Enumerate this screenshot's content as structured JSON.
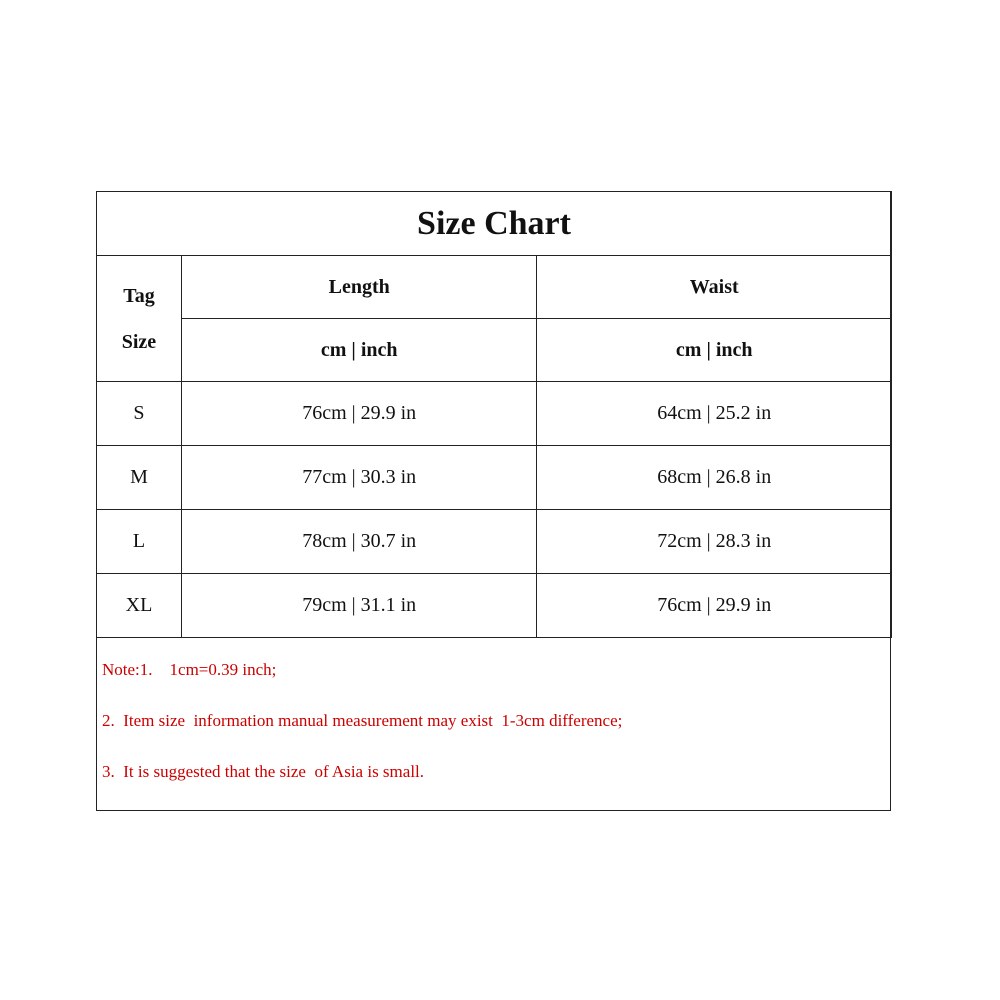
{
  "title": "Size Chart",
  "header": {
    "tag_size": [
      "Tag",
      "Size"
    ],
    "columns": [
      "Length",
      "Waist"
    ],
    "units": [
      "cm | inch",
      "cm | inch"
    ]
  },
  "rows": [
    {
      "size": "S",
      "length": "76cm | 29.9 in",
      "waist": "64cm | 25.2 in"
    },
    {
      "size": "M",
      "length": "77cm | 30.3 in",
      "waist": "68cm | 26.8 in"
    },
    {
      "size": "L",
      "length": "78cm | 30.7 in",
      "waist": "72cm | 28.3 in"
    },
    {
      "size": "XL",
      "length": "79cm | 31.1 in",
      "waist": "76cm | 29.9 in"
    }
  ],
  "notes": [
    "Note:1.    1cm=0.39 inch;",
    "2.  Item size  information manual measurement may exist  1-3cm difference;",
    "3.  It is suggested that the size  of Asia is small."
  ],
  "colors": {
    "note_text": "#cc0000",
    "border": "#222222"
  }
}
